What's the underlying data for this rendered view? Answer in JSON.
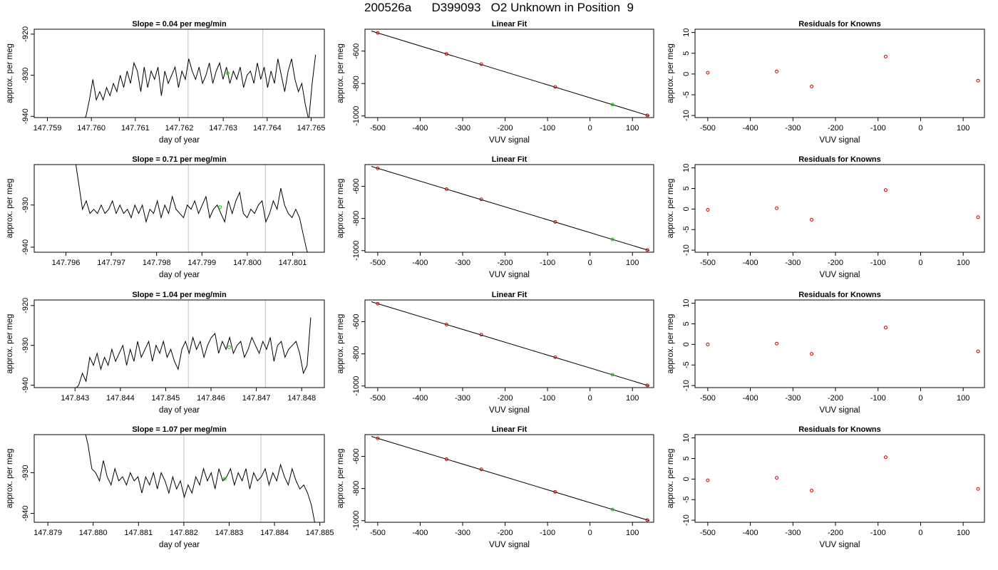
{
  "figure": {
    "title": "200526a      D399093   O2 Unknown in Position  9"
  },
  "style": {
    "trace_color": "#000000",
    "marker_line_color": "#cccccc",
    "unknown_point_color": "#00cc00",
    "known_point_color": "#cc0000",
    "fit_line_color": "#000000"
  },
  "chart_data": [
    {
      "type": "line",
      "panel": "timeseries-1",
      "title": "Slope =  0.04  per meg/min",
      "xlabel": "day of year",
      "ylabel": "approx. per meg",
      "xlim": [
        147.7587,
        147.7653
      ],
      "ylim": [
        -940.3,
        -918.8
      ],
      "xticks": [
        147.759,
        147.76,
        147.761,
        147.762,
        147.763,
        147.764,
        147.765
      ],
      "xtick_labels": [
        "147.759",
        "147.760",
        "147.761",
        "147.762",
        "147.763",
        "147.764",
        "147.765"
      ],
      "yticks": [
        -940,
        -930,
        -920
      ],
      "ytick_labels": [
        "-940",
        "-930",
        "-920"
      ],
      "markers": [
        147.7622,
        147.7639
      ],
      "unknown_point": {
        "x": 147.7631,
        "y": -929.5
      },
      "trace": {
        "x_start": 147.7598,
        "x_end": 147.7651,
        "y": [
          -941,
          -940,
          -936,
          -931,
          -936,
          -934,
          -936,
          -933,
          -935,
          -932,
          -934,
          -930,
          -933,
          -929,
          -932,
          -927,
          -929,
          -934,
          -928,
          -933,
          -929,
          -931,
          -928,
          -935,
          -929,
          -932,
          -930,
          -928,
          -933,
          -929,
          -931,
          -926,
          -929,
          -931,
          -928,
          -932,
          -930,
          -927,
          -932,
          -929,
          -927,
          -931,
          -928,
          -932,
          -929,
          -931,
          -928,
          -933,
          -930,
          -929,
          -932,
          -927,
          -931,
          -928,
          -933,
          -929,
          -932,
          -926,
          -930,
          -934,
          -929,
          -926,
          -931,
          -934,
          -932,
          -937,
          -941,
          -932,
          -925
        ]
      }
    },
    {
      "type": "scatter",
      "panel": "linear-fit-1",
      "title": "Linear Fit",
      "xlabel": "VUV signal",
      "ylabel": "approx. per meg",
      "xlim": [
        -530,
        150
      ],
      "ylim": [
        -1010,
        -465
      ],
      "xticks": [
        -500,
        -400,
        -300,
        -200,
        -100,
        0,
        100
      ],
      "xtick_labels": [
        "-500",
        "-400",
        "-300",
        "-200",
        "-100",
        "0",
        "100"
      ],
      "yticks": [
        -1000,
        -800,
        -600
      ],
      "ytick_labels": [
        "-1000",
        "-800",
        "-600"
      ],
      "fit_line": {
        "x": [
          -515,
          140
        ],
        "y": [
          -476,
          -1000
        ]
      },
      "knowns": {
        "x": [
          -500,
          -338,
          -256,
          -82,
          135
        ],
        "y": [
          -488,
          -618,
          -681,
          -821,
          -996
        ]
      },
      "unknown": {
        "x": 53,
        "y": -930
      }
    },
    {
      "type": "scatter",
      "panel": "residuals-1",
      "title": "Residuals for Knowns",
      "xlabel": "VUV signal",
      "ylabel": "approx. per meg",
      "xlim": [
        -530,
        150
      ],
      "ylim": [
        -10.5,
        10.8
      ],
      "xticks": [
        -500,
        -400,
        -300,
        -200,
        -100,
        0,
        100
      ],
      "xtick_labels": [
        "-500",
        "-400",
        "-300",
        "-200",
        "-100",
        "0",
        "100"
      ],
      "yticks": [
        -10,
        -5,
        0,
        5,
        10
      ],
      "ytick_labels": [
        "-10",
        "-5",
        "0",
        "5",
        "10"
      ],
      "x": [
        -500,
        -338,
        -256,
        -82,
        135
      ],
      "y": [
        0.3,
        0.6,
        -3.0,
        4.2,
        -1.6
      ]
    },
    {
      "type": "line",
      "panel": "timeseries-2",
      "title": "Slope =  0.71  per meg/min",
      "xlabel": "day of year",
      "ylabel": "approx. per meg",
      "xlim": [
        147.7953,
        147.8017
      ],
      "ylim": [
        -941.2,
        -920.4
      ],
      "xticks": [
        147.796,
        147.797,
        147.798,
        147.799,
        147.8,
        147.801
      ],
      "xtick_labels": [
        "147.796",
        "147.797",
        "147.798",
        "147.799",
        "147.800",
        "147.801"
      ],
      "yticks": [
        -940,
        -930
      ],
      "ytick_labels": [
        "-940",
        "-930"
      ],
      "markers": [
        147.7987,
        147.8004
      ],
      "unknown_point": {
        "x": 147.7994,
        "y": -930.5
      },
      "trace": {
        "x_start": 147.7962,
        "x_end": 147.8014,
        "y": [
          -919,
          -925,
          -931,
          -929,
          -932,
          -931,
          -932,
          -930,
          -932,
          -931,
          -929,
          -932,
          -930,
          -932,
          -931,
          -933,
          -930,
          -932,
          -930,
          -934,
          -931,
          -932,
          -929,
          -933,
          -930,
          -932,
          -928,
          -931,
          -932,
          -933,
          -930,
          -931,
          -929,
          -932,
          -930,
          -928,
          -933,
          -931,
          -930,
          -932,
          -934,
          -929,
          -932,
          -929,
          -927,
          -932,
          -933,
          -931,
          -932,
          -930,
          -929,
          -934,
          -932,
          -929,
          -931,
          -926,
          -930,
          -932,
          -933,
          -931,
          -933,
          -937,
          -941,
          -942
        ]
      }
    },
    {
      "type": "scatter",
      "panel": "linear-fit-2",
      "title": "Linear Fit",
      "xlabel": "VUV signal",
      "ylabel": "approx. per meg",
      "xlim": [
        -530,
        150
      ],
      "ylim": [
        -1010,
        -465
      ],
      "xticks": [
        -500,
        -400,
        -300,
        -200,
        -100,
        0,
        100
      ],
      "xtick_labels": [
        "-500",
        "-400",
        "-300",
        "-200",
        "-100",
        "0",
        "100"
      ],
      "yticks": [
        -1000,
        -800,
        -600
      ],
      "ytick_labels": [
        "-1000",
        "-800",
        "-600"
      ],
      "fit_line": {
        "x": [
          -515,
          140
        ],
        "y": [
          -476,
          -1000
        ]
      },
      "knowns": {
        "x": [
          -500,
          -338,
          -256,
          -82,
          135
        ],
        "y": [
          -488,
          -618,
          -681,
          -821,
          -996
        ]
      },
      "unknown": {
        "x": 53,
        "y": -930
      }
    },
    {
      "type": "scatter",
      "panel": "residuals-2",
      "title": "Residuals for Knowns",
      "xlabel": "VUV signal",
      "ylabel": "approx. per meg",
      "xlim": [
        -530,
        150
      ],
      "ylim": [
        -10.5,
        10.8
      ],
      "xticks": [
        -500,
        -400,
        -300,
        -200,
        -100,
        0,
        100
      ],
      "xtick_labels": [
        "-500",
        "-400",
        "-300",
        "-200",
        "-100",
        "0",
        "100"
      ],
      "yticks": [
        -10,
        -5,
        0,
        5,
        10
      ],
      "ytick_labels": [
        "-10",
        "-5",
        "0",
        "5",
        "10"
      ],
      "x": [
        -500,
        -338,
        -256,
        -82,
        135
      ],
      "y": [
        -0.2,
        0.2,
        -2.6,
        4.6,
        -2.0
      ]
    },
    {
      "type": "line",
      "panel": "timeseries-3",
      "title": "Slope =  1.04  per meg/min",
      "xlabel": "day of year",
      "ylabel": "approx. per meg",
      "xlim": [
        147.8421,
        147.8485
      ],
      "ylim": [
        -940.6,
        -918.6
      ],
      "xticks": [
        147.843,
        147.844,
        147.845,
        147.846,
        147.847,
        147.848
      ],
      "xtick_labels": [
        "147.843",
        "147.844",
        "147.845",
        "147.846",
        "147.847",
        "147.848"
      ],
      "yticks": [
        -940,
        -930,
        -920
      ],
      "ytick_labels": [
        "-940",
        "-930",
        "-920"
      ],
      "markers": [
        147.8455,
        147.8472
      ],
      "unknown_point": {
        "x": 147.8464,
        "y": -930.5
      },
      "trace": {
        "x_start": 147.843,
        "x_end": 147.8482,
        "y": [
          -941,
          -940,
          -937,
          -939,
          -933,
          -935,
          -932,
          -936,
          -933,
          -935,
          -931,
          -934,
          -932,
          -930,
          -935,
          -931,
          -934,
          -929,
          -933,
          -931,
          -929,
          -934,
          -930,
          -932,
          -929,
          -933,
          -931,
          -934,
          -936,
          -931,
          -929,
          -932,
          -928,
          -931,
          -929,
          -933,
          -930,
          -928,
          -927,
          -932,
          -929,
          -931,
          -928,
          -932,
          -930,
          -929,
          -933,
          -931,
          -928,
          -930,
          -932,
          -929,
          -931,
          -928,
          -934,
          -930,
          -929,
          -933,
          -931,
          -930,
          -929,
          -932,
          -937,
          -935,
          -923
        ]
      }
    },
    {
      "type": "scatter",
      "panel": "linear-fit-3",
      "title": "Linear Fit",
      "xlabel": "VUV signal",
      "ylabel": "approx. per meg",
      "xlim": [
        -530,
        150
      ],
      "ylim": [
        -1010,
        -465
      ],
      "xticks": [
        -500,
        -400,
        -300,
        -200,
        -100,
        0,
        100
      ],
      "xtick_labels": [
        "-500",
        "-400",
        "-300",
        "-200",
        "-100",
        "0",
        "100"
      ],
      "yticks": [
        -1000,
        -800,
        -600
      ],
      "ytick_labels": [
        "-1000",
        "-800",
        "-600"
      ],
      "fit_line": {
        "x": [
          -515,
          140
        ],
        "y": [
          -476,
          -1000
        ]
      },
      "knowns": {
        "x": [
          -500,
          -338,
          -256,
          -82,
          135
        ],
        "y": [
          -488,
          -618,
          -681,
          -821,
          -996
        ]
      },
      "unknown": {
        "x": 53,
        "y": -930
      }
    },
    {
      "type": "scatter",
      "panel": "residuals-3",
      "title": "Residuals for Knowns",
      "xlabel": "VUV signal",
      "ylabel": "approx. per meg",
      "xlim": [
        -530,
        150
      ],
      "ylim": [
        -10.5,
        10.8
      ],
      "xticks": [
        -500,
        -400,
        -300,
        -200,
        -100,
        0,
        100
      ],
      "xtick_labels": [
        "-500",
        "-400",
        "-300",
        "-200",
        "-100",
        "0",
        "100"
      ],
      "yticks": [
        -10,
        -5,
        0,
        5,
        10
      ],
      "ytick_labels": [
        "-10",
        "-5",
        "0",
        "5",
        "10"
      ],
      "x": [
        -500,
        -338,
        -256,
        -82,
        135
      ],
      "y": [
        0.0,
        0.2,
        -2.3,
        4.1,
        -1.7
      ]
    },
    {
      "type": "line",
      "panel": "timeseries-4",
      "title": "Slope =  1.07  per meg/min",
      "xlabel": "day of year",
      "ylabel": "approx. per meg",
      "xlim": [
        147.8787,
        147.8851
      ],
      "ylim": [
        -942.2,
        -920.6
      ],
      "xticks": [
        147.879,
        147.88,
        147.881,
        147.882,
        147.883,
        147.884,
        147.885
      ],
      "xtick_labels": [
        "147.879",
        "147.880",
        "147.881",
        "147.882",
        "147.883",
        "147.884",
        "147.885"
      ],
      "yticks": [
        -940,
        -930
      ],
      "ytick_labels": [
        "-940",
        "-930"
      ],
      "markers": [
        147.882,
        147.8837
      ],
      "unknown_point": {
        "x": 147.8829,
        "y": -931.5
      },
      "trace": {
        "x_start": 147.8798,
        "x_end": 147.8849,
        "y": [
          -919,
          -923,
          -929,
          -930,
          -932,
          -927,
          -931,
          -933,
          -929,
          -932,
          -931,
          -933,
          -930,
          -932,
          -931,
          -935,
          -931,
          -933,
          -930,
          -934,
          -930,
          -932,
          -935,
          -931,
          -934,
          -932,
          -936,
          -933,
          -935,
          -931,
          -933,
          -929,
          -932,
          -930,
          -934,
          -929,
          -932,
          -931,
          -929,
          -933,
          -930,
          -932,
          -929,
          -934,
          -930,
          -932,
          -931,
          -929,
          -933,
          -930,
          -932,
          -928,
          -931,
          -933,
          -929,
          -932,
          -934,
          -933,
          -935,
          -938,
          -943
        ]
      }
    },
    {
      "type": "scatter",
      "panel": "linear-fit-4",
      "title": "Linear Fit",
      "xlabel": "VUV signal",
      "ylabel": "approx. per meg",
      "xlim": [
        -530,
        150
      ],
      "ylim": [
        -1010,
        -465
      ],
      "xticks": [
        -500,
        -400,
        -300,
        -200,
        -100,
        0,
        100
      ],
      "xtick_labels": [
        "-500",
        "-400",
        "-300",
        "-200",
        "-100",
        "0",
        "100"
      ],
      "yticks": [
        -1000,
        -800,
        -600
      ],
      "ytick_labels": [
        "-1000",
        "-800",
        "-600"
      ],
      "fit_line": {
        "x": [
          -515,
          140
        ],
        "y": [
          -476,
          -1000
        ]
      },
      "knowns": {
        "x": [
          -500,
          -338,
          -256,
          -82,
          135
        ],
        "y": [
          -488,
          -618,
          -681,
          -821,
          -996
        ]
      },
      "unknown": {
        "x": 53,
        "y": -930
      }
    },
    {
      "type": "scatter",
      "panel": "residuals-4",
      "title": "Residuals for Knowns",
      "xlabel": "VUV signal",
      "ylabel": "approx. per meg",
      "xlim": [
        -530,
        150
      ],
      "ylim": [
        -10.5,
        10.8
      ],
      "xticks": [
        -500,
        -400,
        -300,
        -200,
        -100,
        0,
        100
      ],
      "xtick_labels": [
        "-500",
        "-400",
        "-300",
        "-200",
        "-100",
        "0",
        "100"
      ],
      "yticks": [
        -10,
        -5,
        0,
        5,
        10
      ],
      "ytick_labels": [
        "-10",
        "-5",
        "0",
        "5",
        "10"
      ],
      "x": [
        -500,
        -338,
        -256,
        -82,
        135
      ],
      "y": [
        -0.3,
        0.3,
        -2.8,
        5.3,
        -2.4
      ]
    }
  ]
}
